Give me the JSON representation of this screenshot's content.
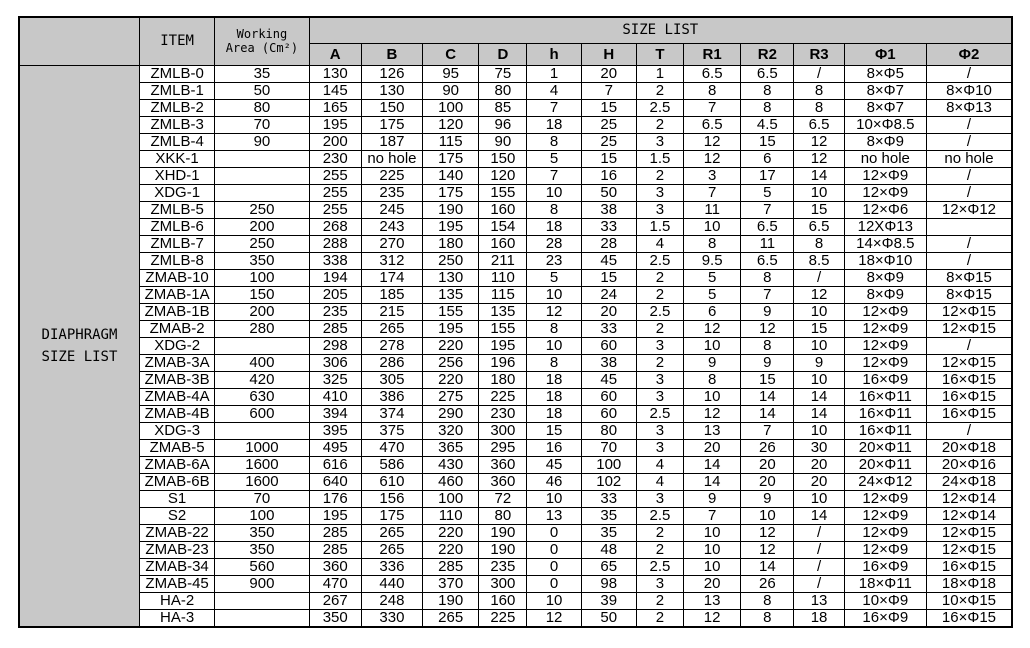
{
  "header": {
    "item": "ITEM",
    "working_area": [
      "Working",
      "Area (Cm²)"
    ],
    "size_list": "SIZE LIST",
    "columns": [
      "A",
      "B",
      "C",
      "D",
      "h",
      "H",
      "T",
      "R1",
      "R2",
      "R3",
      "Φ1",
      "Φ2"
    ]
  },
  "side_label": [
    "DIAPHRAGM",
    "SIZE LIST"
  ],
  "table": {
    "rows": [
      [
        "ZMLB-0",
        35,
        130,
        126,
        95,
        75,
        1,
        20,
        1,
        6.5,
        6.5,
        "/",
        "8×Φ5",
        "/"
      ],
      [
        "ZMLB-1",
        50,
        145,
        130,
        90,
        80,
        4,
        7,
        2,
        8,
        8,
        8,
        "8×Φ7",
        "8×Φ10"
      ],
      [
        "ZMLB-2",
        80,
        165,
        150,
        100,
        85,
        7,
        15,
        2.5,
        7,
        8,
        8,
        "8×Φ7",
        "8×Φ13"
      ],
      [
        "ZMLB-3",
        70,
        195,
        175,
        120,
        96,
        18,
        25,
        2,
        6.5,
        4.5,
        6.5,
        "10×Φ8.5",
        "/"
      ],
      [
        "ZMLB-4",
        90,
        200,
        187,
        115,
        90,
        8,
        25,
        3,
        12,
        15,
        12,
        "8×Φ9",
        "/"
      ],
      [
        "XKK-1",
        null,
        230,
        "no hole",
        175,
        150,
        5,
        15,
        1.5,
        12,
        6,
        12,
        "no hole",
        "no hole"
      ],
      [
        "XHD-1",
        null,
        255,
        225,
        140,
        120,
        7,
        16,
        2,
        3,
        17,
        14,
        "12×Φ9",
        "/"
      ],
      [
        "XDG-1",
        null,
        255,
        235,
        175,
        155,
        10,
        50,
        3,
        7,
        5,
        10,
        "12×Φ9",
        "/"
      ],
      [
        "ZMLB-5",
        250,
        255,
        245,
        190,
        160,
        8,
        38,
        3,
        11,
        7,
        15,
        "12×Φ6",
        "12×Φ12"
      ],
      [
        "ZMLB-6",
        200,
        268,
        243,
        195,
        154,
        18,
        33,
        1.5,
        10,
        6.5,
        6.5,
        "12XΦ13",
        null
      ],
      [
        "ZMLB-7",
        250,
        288,
        270,
        180,
        160,
        28,
        28,
        4,
        8,
        11,
        8,
        "14×Φ8.5",
        "/"
      ],
      [
        "ZMLB-8",
        350,
        338,
        312,
        250,
        211,
        23,
        45,
        2.5,
        9.5,
        6.5,
        8.5,
        "18×Φ10",
        "/"
      ],
      [
        "ZMAB-10",
        100,
        194,
        174,
        130,
        110,
        5,
        15,
        2,
        5,
        8,
        "/",
        "8×Φ9",
        "8×Φ15"
      ],
      [
        "ZMAB-1A",
        150,
        205,
        185,
        135,
        115,
        10,
        24,
        2,
        5,
        7,
        12,
        "8×Φ9",
        "8×Φ15"
      ],
      [
        "ZMAB-1B",
        200,
        235,
        215,
        155,
        135,
        12,
        20,
        2.5,
        6,
        9,
        10,
        "12×Φ9",
        "12×Φ15"
      ],
      [
        "ZMAB-2",
        280,
        285,
        265,
        195,
        155,
        8,
        33,
        2,
        12,
        12,
        15,
        "12×Φ9",
        "12×Φ15"
      ],
      [
        "XDG-2",
        null,
        298,
        278,
        220,
        195,
        10,
        60,
        3,
        10,
        8,
        10,
        "12×Φ9",
        "/"
      ],
      [
        "ZMAB-3A",
        400,
        306,
        286,
        256,
        196,
        8,
        38,
        2,
        9,
        9,
        9,
        "12×Φ9",
        "12×Φ15"
      ],
      [
        "ZMAB-3B",
        420,
        325,
        305,
        220,
        180,
        18,
        45,
        3,
        8,
        15,
        10,
        "16×Φ9",
        "16×Φ15"
      ],
      [
        "ZMAB-4A",
        630,
        410,
        386,
        275,
        225,
        18,
        60,
        3,
        10,
        14,
        14,
        "16×Φ11",
        "16×Φ15"
      ],
      [
        "ZMAB-4B",
        600,
        394,
        374,
        290,
        230,
        18,
        60,
        2.5,
        12,
        14,
        14,
        "16×Φ11",
        "16×Φ15"
      ],
      [
        "XDG-3",
        null,
        395,
        375,
        320,
        300,
        15,
        80,
        3,
        13,
        7,
        10,
        "16×Φ11",
        "/"
      ],
      [
        "ZMAB-5",
        1000,
        495,
        470,
        365,
        295,
        16,
        70,
        3,
        20,
        26,
        30,
        "20×Φ11",
        "20×Φ18"
      ],
      [
        "ZMAB-6A",
        1600,
        616,
        586,
        430,
        360,
        45,
        100,
        4,
        14,
        20,
        20,
        "20×Φ11",
        "20×Φ16"
      ],
      [
        "ZMAB-6B",
        1600,
        640,
        610,
        460,
        360,
        46,
        102,
        4,
        14,
        20,
        20,
        "24×Φ12",
        "24×Φ18"
      ],
      [
        "S1",
        70,
        176,
        156,
        100,
        72,
        10,
        33,
        3,
        9,
        9,
        10,
        "12×Φ9",
        "12×Φ14"
      ],
      [
        "S2",
        100,
        195,
        175,
        110,
        80,
        13,
        35,
        2.5,
        7,
        10,
        14,
        "12×Φ9",
        "12×Φ14"
      ],
      [
        "ZMAB-22",
        350,
        285,
        265,
        220,
        190,
        0,
        35,
        2,
        10,
        12,
        "/",
        "12×Φ9",
        "12×Φ15"
      ],
      [
        "ZMAB-23",
        350,
        285,
        265,
        220,
        190,
        0,
        48,
        2,
        10,
        12,
        "/",
        "12×Φ9",
        "12×Φ15"
      ],
      [
        "ZMAB-34",
        560,
        360,
        336,
        285,
        235,
        0,
        65,
        2.5,
        10,
        14,
        "/",
        "16×Φ9",
        "16×Φ15"
      ],
      [
        "ZMAB-45",
        900,
        470,
        440,
        370,
        300,
        0,
        98,
        3,
        20,
        26,
        "/",
        "18×Φ11",
        "18×Φ18"
      ],
      [
        "HA-2",
        null,
        267,
        248,
        190,
        160,
        10,
        39,
        2,
        13,
        8,
        13,
        "10×Φ9",
        "10×Φ15"
      ],
      [
        "HA-3",
        null,
        350,
        330,
        265,
        225,
        12,
        50,
        2,
        12,
        8,
        18,
        "16×Φ9",
        "16×Φ15"
      ]
    ]
  }
}
